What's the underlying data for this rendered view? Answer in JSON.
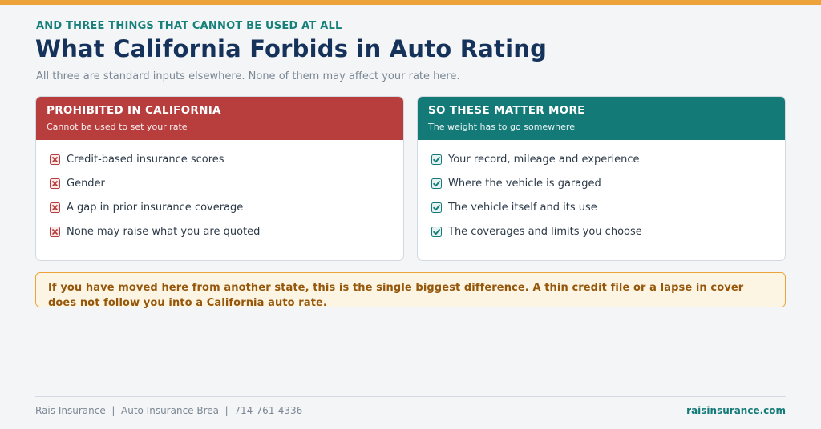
{
  "header": {
    "eyebrow": "AND THREE THINGS THAT CANNOT BE USED AT ALL",
    "title": "What California Forbids in Auto Rating",
    "subtitle": "All three are standard inputs elsewhere. None of them may affect your rate here."
  },
  "prohibited": {
    "title": "PROHIBITED IN CALIFORNIA",
    "subtitle": "Cannot be used to set your rate",
    "color": "#b83e3e",
    "icon": "x-box-icon",
    "items": [
      "Credit-based insurance scores",
      "Gender",
      "A gap in prior insurance coverage",
      "None may raise what you are quoted"
    ]
  },
  "matter_more": {
    "title": "SO THESE MATTER MORE",
    "subtitle": "The weight has to go somewhere",
    "color": "#137a78",
    "icon": "checkbox-icon",
    "items": [
      "Your record, mileage and experience",
      "Where the vehicle is garaged",
      "The vehicle itself and its use",
      "The coverages and limits you choose"
    ]
  },
  "callout": {
    "text": "If you have moved here from another state, this is the single biggest difference. A thin credit file or a lapse in cover does not follow you into a California auto rate."
  },
  "footer": {
    "left": "Rais Insurance  |  Auto Insurance Brea  |  714-761-4336",
    "right": "raisinsurance.com"
  },
  "colors": {
    "accent": "#eda33a",
    "navy": "#14325a",
    "teal": "#137a78",
    "red": "#b83e3e"
  }
}
